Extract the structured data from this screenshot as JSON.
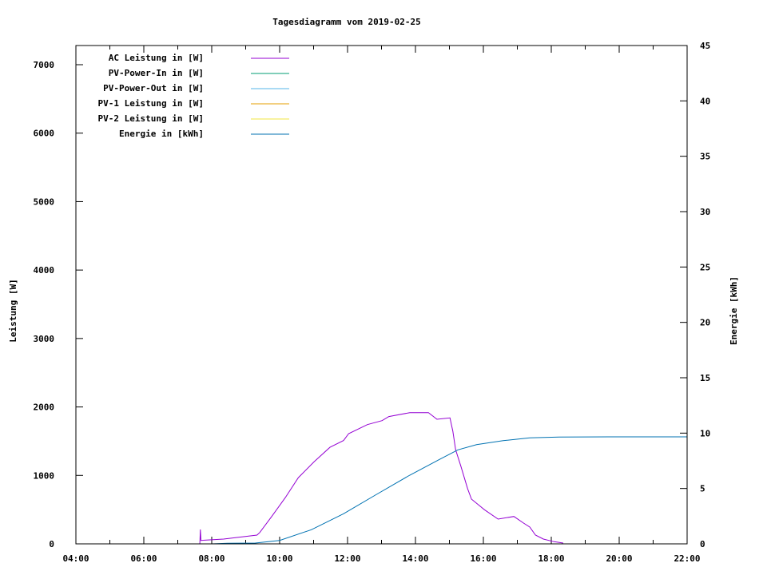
{
  "chart_data": {
    "type": "line",
    "title": "Tagesdiagramm vom 2019-02-25",
    "xlabel": "",
    "ylabel": "Leistung [W]",
    "y2label": "Energie [kWh]",
    "xlim": [
      "04:00",
      "22:00"
    ],
    "ylim": [
      0,
      7280
    ],
    "y2lim": [
      0,
      45
    ],
    "x_ticks": [
      "04:00",
      "06:00",
      "08:00",
      "10:00",
      "12:00",
      "14:00",
      "16:00",
      "18:00",
      "20:00",
      "22:00"
    ],
    "y_ticks": [
      "0",
      "1000",
      "2000",
      "3000",
      "4000",
      "5000",
      "6000",
      "7000"
    ],
    "y2_ticks": [
      "0",
      "5",
      "10",
      "15",
      "20",
      "25",
      "30",
      "35",
      "40",
      "45"
    ],
    "grid": false,
    "legend_placement": "top-left",
    "series": [
      {
        "name": "AC Leistung in [W]",
        "color": "#9400d3",
        "axis": "y",
        "x": [
          "07:39",
          "07:40",
          "07:41",
          "08:21",
          "09:20",
          "09:25",
          "09:46",
          "10:10",
          "10:33",
          "11:01",
          "11:29",
          "11:53",
          "12:02",
          "12:35",
          "13:01",
          "13:13",
          "13:50",
          "14:23",
          "14:38",
          "15:01",
          "15:06",
          "15:11",
          "15:20",
          "15:32",
          "15:39",
          "16:02",
          "16:26",
          "16:54",
          "17:11",
          "17:22",
          "17:32",
          "17:46",
          "18:05",
          "18:21"
        ],
        "values": [
          0,
          210,
          50,
          70,
          128,
          167,
          400,
          675,
          967,
          1200,
          1410,
          1510,
          1610,
          1742,
          1800,
          1860,
          1917,
          1917,
          1820,
          1840,
          1645,
          1373,
          1140,
          809,
          653,
          498,
          362,
          400,
          303,
          245,
          128,
          70,
          31,
          12
        ]
      },
      {
        "name": "PV-Power-In in [W]",
        "color": "#009e73",
        "axis": "y",
        "x": [],
        "values": []
      },
      {
        "name": "PV-Power-Out in [W]",
        "color": "#56b4e9",
        "axis": "y",
        "x": [],
        "values": []
      },
      {
        "name": "PV-1 Leistung in [W]",
        "color": "#e69f00",
        "axis": "y",
        "x": [],
        "values": []
      },
      {
        "name": "PV-2 Leistung in [W]",
        "color": "#f0e442",
        "axis": "y",
        "x": [],
        "values": []
      },
      {
        "name": "Energie in [kWh]",
        "color": "#0072b2",
        "axis": "y2",
        "x": [
          "08:00",
          "08:28",
          "09:17",
          "10:00",
          "10:56",
          "11:53",
          "12:49",
          "13:50",
          "14:43",
          "15:15",
          "15:48",
          "16:35",
          "17:22",
          "18:14",
          "20:00",
          "22:00"
        ],
        "values": [
          0,
          0.05,
          0.07,
          0.31,
          1.28,
          2.72,
          4.4,
          6.2,
          7.64,
          8.49,
          8.96,
          9.32,
          9.57,
          9.64,
          9.66,
          9.66
        ]
      }
    ]
  }
}
